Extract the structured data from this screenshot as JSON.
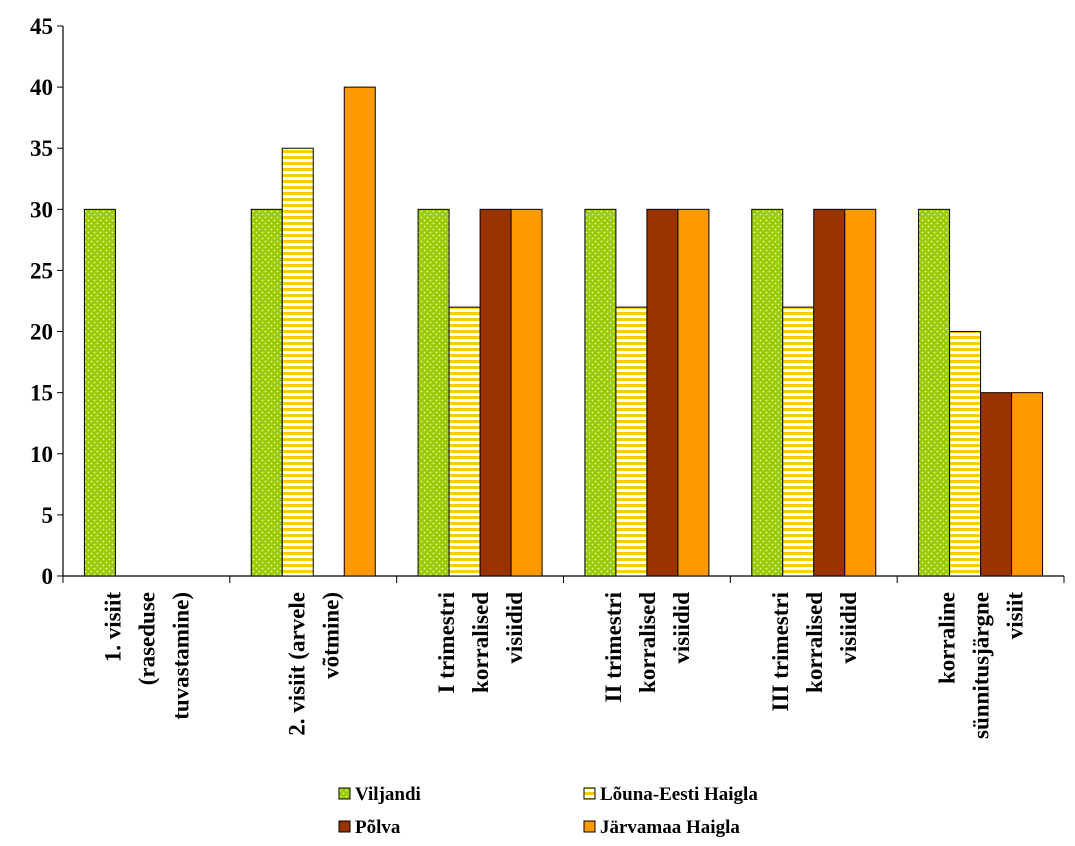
{
  "chart_data": {
    "type": "bar",
    "categories": [
      [
        "1. visiit",
        "(raseduse",
        "tuvastamine)"
      ],
      [
        "2. visiit (arvele",
        "võtmine)"
      ],
      [
        "I trimestri",
        "korralised",
        "visiidid"
      ],
      [
        "II trimestri",
        "korralised",
        "visiidid"
      ],
      [
        "III trimestri",
        "korralised",
        "visiidid"
      ],
      [
        "korraline",
        "sünnitusjärgne",
        "visiit"
      ]
    ],
    "series": [
      {
        "name": "Viljandi",
        "values": [
          30,
          30,
          30,
          30,
          30,
          30
        ],
        "color": "#99cc00",
        "pattern": "dots"
      },
      {
        "name": "Lõuna-Eesti Haigla",
        "values": [
          null,
          35,
          22,
          22,
          22,
          20
        ],
        "color": "#ffcc00",
        "pattern": "stripes"
      },
      {
        "name": "Põlva",
        "values": [
          null,
          null,
          30,
          30,
          30,
          15
        ],
        "color": "#993300",
        "pattern": "solid"
      },
      {
        "name": "Järvamaa Haigla",
        "values": [
          null,
          40,
          30,
          30,
          30,
          15
        ],
        "color": "#ff9900",
        "pattern": "solid"
      }
    ],
    "yticks": [
      "0",
      "5",
      "10",
      "15",
      "20",
      "25",
      "30",
      "35",
      "40",
      "45"
    ],
    "ylim": [
      0,
      45
    ],
    "grid": false,
    "legend": "bottom"
  }
}
